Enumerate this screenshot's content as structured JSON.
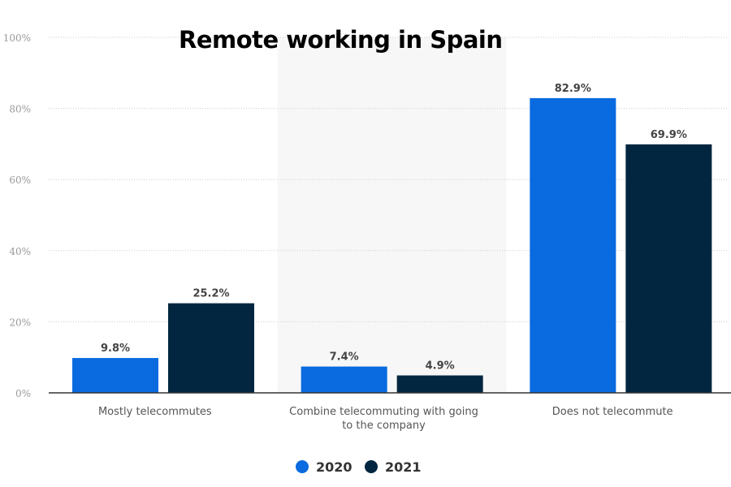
{
  "chart_data": {
    "type": "bar",
    "title": "Remote working in Spain",
    "categories": [
      "Mostly telecommutes",
      "Combine telecommuting with going to the company",
      "Does not telecommute"
    ],
    "category_lines": [
      [
        "Mostly telecommutes"
      ],
      [
        "Combine telecommuting with going",
        "to the company"
      ],
      [
        "Does not telecommute"
      ]
    ],
    "series": [
      {
        "name": "2020",
        "values": [
          9.8,
          7.4,
          82.9
        ],
        "color": "#0a6ae0"
      },
      {
        "name": "2021",
        "values": [
          25.2,
          4.9,
          69.9
        ],
        "color": "#02263f"
      }
    ],
    "data_labels": [
      [
        "9.8%",
        "7.4%",
        "82.9%"
      ],
      [
        "25.2%",
        "4.9%",
        "69.9%"
      ]
    ],
    "ylim": [
      0,
      100
    ],
    "yticks": [
      "0%",
      "20%",
      "40%",
      "60%",
      "80%",
      "100%"
    ],
    "ytick_values": [
      0,
      20,
      40,
      60,
      80,
      100
    ],
    "grid": true,
    "highlighted_category": 1,
    "legend_position": "bottom"
  }
}
